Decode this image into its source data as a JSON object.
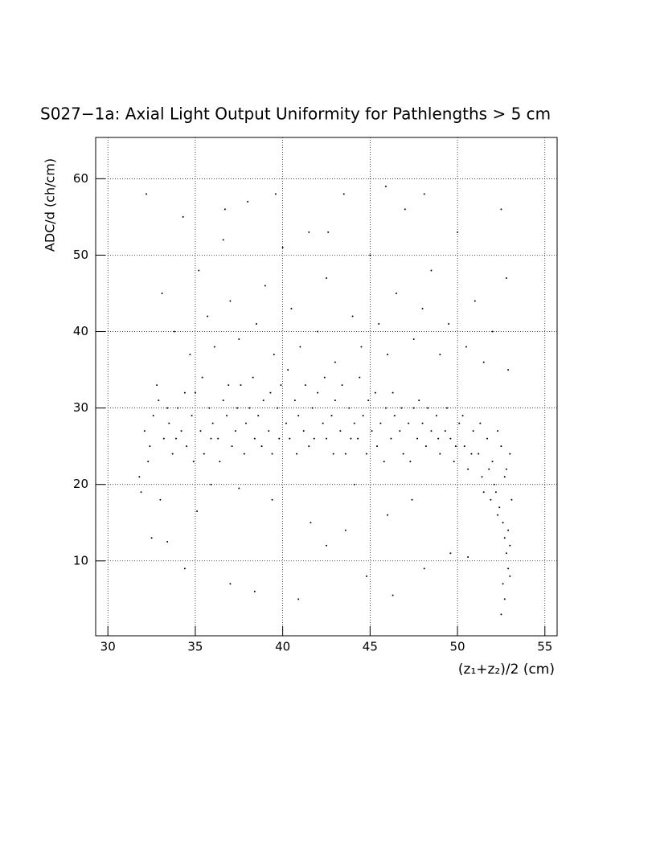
{
  "chart_data": {
    "type": "scatter",
    "title": "S027−1a: Axial Light Output Uniformity for Pathlengths > 5 cm",
    "xlabel": "(z₁+z₂)/2 (cm)",
    "ylabel": "ADC/d (ch/cm)",
    "xlim": [
      29.3,
      55.7
    ],
    "ylim": [
      0.2,
      65.4
    ],
    "xticks": [
      30,
      35,
      40,
      45,
      50,
      55
    ],
    "yticks": [
      10,
      20,
      30,
      40,
      50,
      60
    ],
    "grid": true,
    "color": "#000000",
    "x": [
      32.1,
      32.4,
      32.6,
      32.9,
      33.2,
      33.5,
      33.7,
      34.0,
      34.2,
      34.5,
      34.8,
      35.0,
      35.3,
      35.5,
      35.8,
      36.0,
      36.3,
      36.6,
      36.8,
      37.1,
      37.3,
      37.6,
      37.9,
      38.1,
      38.4,
      38.6,
      38.9,
      39.2,
      39.4,
      39.7,
      39.9,
      40.2,
      40.4,
      40.7,
      40.9,
      41.2,
      41.5,
      41.7,
      42.0,
      42.3,
      42.5,
      42.8,
      43.0,
      43.3,
      43.6,
      43.8,
      44.1,
      44.3,
      44.6,
      44.9,
      45.1,
      45.4,
      45.6,
      45.9,
      46.2,
      46.4,
      46.7,
      46.9,
      47.2,
      47.5,
      47.7,
      48.0,
      48.2,
      48.5,
      48.8,
      49.0,
      49.3,
      49.6,
      49.8,
      50.1,
      50.4,
      50.6,
      50.9,
      51.2,
      51.4,
      51.7,
      52.0,
      52.2,
      52.5,
      52.8,
      32.3,
      32.8,
      33.4,
      33.9,
      34.4,
      34.9,
      35.4,
      35.9,
      36.4,
      36.9,
      37.4,
      37.8,
      38.3,
      38.8,
      39.3,
      39.8,
      40.3,
      40.8,
      41.3,
      41.8,
      42.4,
      42.9,
      43.4,
      43.9,
      44.4,
      44.8,
      45.3,
      45.8,
      46.3,
      46.8,
      47.3,
      47.8,
      48.3,
      48.9,
      49.4,
      49.9,
      50.3,
      50.8,
      51.3,
      51.8,
      52.3,
      52.7,
      53.0,
      53.1,
      52.4,
      52.6,
      52.7,
      52.8,
      52.9,
      53.0,
      52.6,
      52.7,
      52.5,
      53.0,
      52.9,
      52.3,
      51.9,
      51.5,
      52.1,
      32.2,
      33.1,
      33.8,
      34.3,
      34.7,
      35.2,
      35.7,
      36.1,
      36.6,
      37.0,
      37.5,
      38.0,
      38.5,
      39.0,
      39.5,
      40.0,
      40.5,
      41.0,
      41.5,
      42.0,
      42.5,
      43.0,
      43.5,
      44.0,
      44.5,
      45.0,
      45.5,
      46.0,
      46.5,
      47.0,
      47.5,
      48.0,
      48.5,
      49.0,
      49.5,
      50.0,
      50.5,
      51.0,
      51.5,
      52.0,
      52.5,
      52.8,
      52.9,
      42.6,
      39.6,
      36.7,
      45.9,
      48.1,
      32.5,
      33.4,
      34.4,
      35.1,
      37.0,
      38.4,
      39.4,
      40.9,
      42.5,
      43.6,
      44.8,
      46.3,
      47.4,
      48.1,
      49.6,
      50.6,
      33.0,
      35.9,
      41.6,
      46.0,
      31.8,
      31.9,
      37.5,
      44.1
    ],
    "values": [
      27,
      25,
      29,
      31,
      26,
      28,
      24,
      30,
      27,
      25,
      29,
      32,
      27,
      24,
      30,
      28,
      26,
      31,
      29,
      25,
      27,
      33,
      28,
      30,
      26,
      29,
      31,
      27,
      24,
      30,
      33,
      28,
      26,
      31,
      29,
      27,
      25,
      30,
      32,
      28,
      26,
      29,
      31,
      27,
      24,
      30,
      28,
      26,
      29,
      31,
      27,
      25,
      28,
      30,
      26,
      29,
      27,
      24,
      28,
      30,
      26,
      28,
      25,
      27,
      29,
      24,
      27,
      26,
      23,
      28,
      25,
      22,
      27,
      24,
      21,
      26,
      23,
      19,
      25,
      22,
      23,
      33,
      30,
      26,
      32,
      23,
      34,
      26,
      23,
      33,
      30,
      24,
      34,
      25,
      32,
      26,
      35,
      24,
      33,
      26,
      34,
      24,
      33,
      26,
      34,
      24,
      32,
      23,
      32,
      30,
      23,
      31,
      30,
      26,
      30,
      25,
      29,
      24,
      28,
      22,
      27,
      21,
      24,
      18,
      17,
      15,
      13,
      11,
      9,
      12,
      7,
      5,
      3,
      8,
      14,
      16,
      18,
      19,
      20,
      58,
      45,
      40,
      55,
      37,
      48,
      42,
      38,
      52,
      44,
      39,
      57,
      41,
      46,
      37,
      51,
      43,
      38,
      53,
      40,
      47,
      36,
      58,
      42,
      38,
      50,
      41,
      37,
      45,
      56,
      39,
      43,
      48,
      37,
      41,
      53,
      38,
      44,
      36,
      40,
      56,
      47,
      35,
      53,
      58,
      56,
      59,
      58,
      13,
      12.5,
      9,
      16.5,
      7,
      6,
      18,
      5,
      12,
      14,
      8,
      5.5,
      18,
      9,
      11,
      10.5,
      18,
      20,
      15,
      16,
      21,
      19,
      19.5,
      20
    ]
  }
}
